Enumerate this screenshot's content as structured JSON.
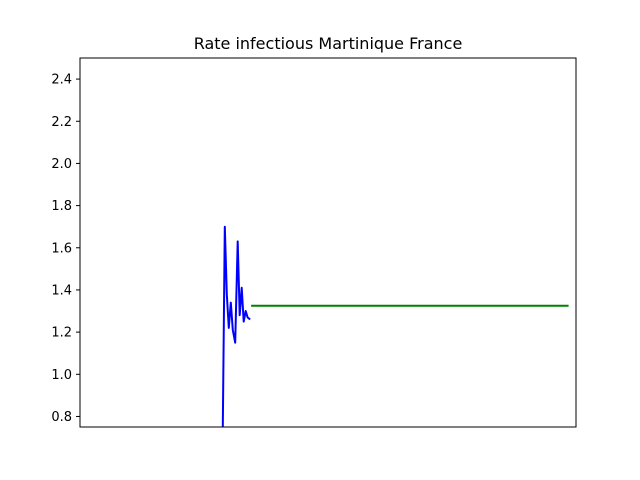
{
  "chart_data": {
    "type": "line",
    "title": "Rate infectious Martinique France",
    "xlabel": "",
    "ylabel": "",
    "ylim": [
      0.75,
      2.5
    ],
    "xlim": [
      0,
      100
    ],
    "yticks": [
      "0.8",
      "1.0",
      "1.2",
      "1.4",
      "1.6",
      "1.8",
      "2.0",
      "2.2",
      "2.4"
    ],
    "xticks_visible": false,
    "grid": false,
    "series": [
      {
        "color": "#0000ff",
        "x": [
          28.8,
          29.2,
          29.6,
          30.0,
          30.4,
          30.8,
          31.3,
          31.8,
          32.2,
          32.6,
          33.0,
          33.4,
          33.8,
          34.3
        ],
        "y": [
          0.75,
          1.7,
          1.38,
          1.22,
          1.34,
          1.21,
          1.15,
          1.63,
          1.28,
          1.41,
          1.25,
          1.3,
          1.27,
          1.26
        ]
      },
      {
        "color": "#008000",
        "x": [
          34.5,
          98.5
        ],
        "y": [
          1.325,
          1.325
        ]
      }
    ]
  }
}
